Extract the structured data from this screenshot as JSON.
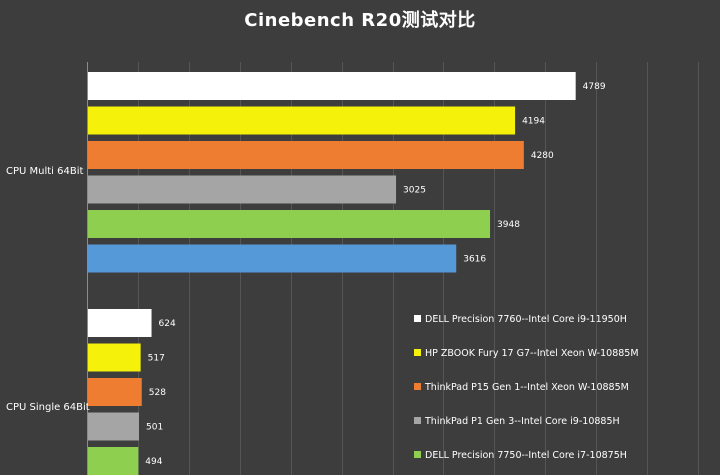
{
  "chart_data": {
    "type": "bar",
    "orientation": "horizontal",
    "title": "Cinebench R20测试对比",
    "categories": [
      "CPU Multi 64Bit",
      "CPU Single 64Bit"
    ],
    "xlim": [
      0,
      6000
    ],
    "grid": true,
    "legend_position": "bottom-right",
    "series": [
      {
        "name": "DELL Precision 7760--Intel Core i9-11950H",
        "color": "#ffffff",
        "values": [
          4789,
          624
        ]
      },
      {
        "name": "HP ZBOOK Fury 17 G7--Intel Xeon W-10885M",
        "color": "#f5f10a",
        "values": [
          4194,
          517
        ]
      },
      {
        "name": "ThinkPad P15 Gen 1--Intel Xeon W-10885M",
        "color": "#ee7d31",
        "values": [
          4280,
          528
        ]
      },
      {
        "name": "ThinkPad P1 Gen 3--Intel Core i9-10885H",
        "color": "#a5a5a5",
        "values": [
          3025,
          501
        ]
      },
      {
        "name": "DELL Precision 7750--Intel Core i7-10875H",
        "color": "#8fcf4f",
        "values": [
          3948,
          494
        ]
      },
      {
        "name": "",
        "color": "#5699d9",
        "values": [
          3616,
          null
        ]
      }
    ]
  }
}
